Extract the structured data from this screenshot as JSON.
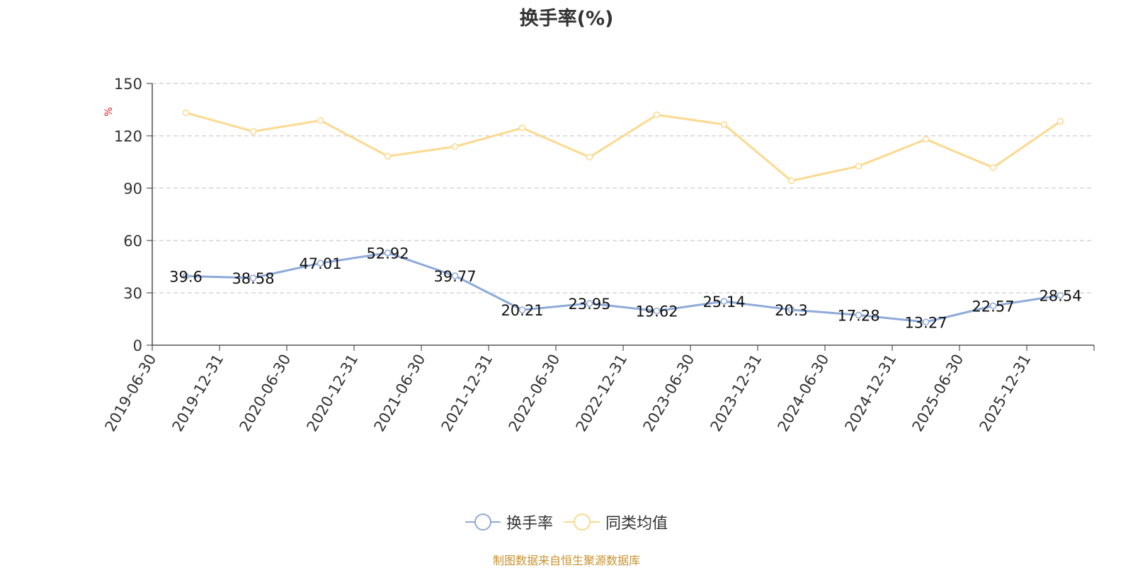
{
  "chart_data": {
    "type": "line",
    "title": "换手率(%)",
    "ylabel": "%",
    "ylim": [
      0,
      150
    ],
    "yticks": [
      0,
      30,
      60,
      90,
      120,
      150
    ],
    "grid": true,
    "legend_position": "bottom-center",
    "categories": [
      "2019-06-30",
      "2019-12-31",
      "2020-06-30",
      "2020-12-31",
      "2021-06-30",
      "2021-12-31",
      "2022-06-30",
      "2022-12-31",
      "2023-06-30",
      "2023-12-31",
      "2024-06-30",
      "2024-12-31",
      "2025-06-30",
      "2025-12-31"
    ],
    "series": [
      {
        "name": "换手率",
        "color": "#8eaad8",
        "show_labels": true,
        "values": [
          39.6,
          38.58,
          47.01,
          52.92,
          39.77,
          20.21,
          23.95,
          19.62,
          25.14,
          20.3,
          17.28,
          13.27,
          22.57,
          28.54
        ]
      },
      {
        "name": "同类均值",
        "color": "#fcd98f",
        "show_labels": false,
        "values": [
          133.2,
          122.5,
          128.8,
          108.3,
          113.8,
          124.5,
          107.8,
          132,
          126.5,
          94.2,
          102.6,
          118,
          101.8,
          128.3
        ]
      }
    ],
    "source": "制图数据来自恒生聚源数据库"
  }
}
